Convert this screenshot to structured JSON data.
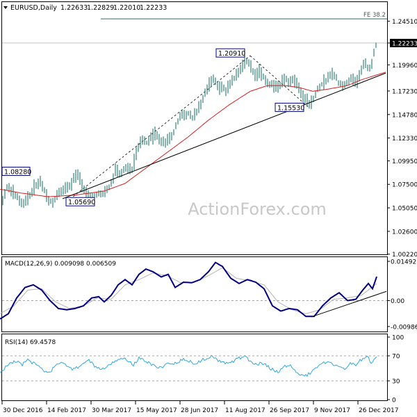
{
  "header": {
    "symbol": "EURUSD,Daily",
    "open": "1.22633",
    "high": "1.22829",
    "low": "1.22010",
    "close": "1.22233"
  },
  "watermark": "ActionForex.com",
  "colors": {
    "price_bar": "#0b6b5e",
    "moving_average": "#d61f1f",
    "trendline": "#000000",
    "macd_main": "#000080",
    "macd_signal": "#b4b4b4",
    "rsi": "#2aa9e0",
    "fibo_line": "#1f6f6f",
    "label_border": "#000080"
  },
  "chart_data": [
    {
      "type": "line",
      "panel": "price",
      "ylim": [
        1.002,
        1.265
      ],
      "y_ticks": [
        "1.24510",
        "1.22233",
        "1.19960",
        "1.17230",
        "1.14780",
        "1.12330",
        "1.09950",
        "1.07500",
        "1.05050",
        "1.02600",
        "1.00220"
      ],
      "current_price": "1.22233",
      "fibo_label": "FE 38.2",
      "fibo_level": 1.2475,
      "annotations": [
        {
          "label": "1.08280",
          "value": 1.0828
        },
        {
          "label": "1.05690",
          "value": 1.0569
        },
        {
          "label": "1.20910",
          "value": 1.2091
        },
        {
          "label": "1.15530",
          "value": 1.1553
        }
      ],
      "price_anchors": [
        [
          0,
          1.038
        ],
        [
          4,
          1.058
        ],
        [
          10,
          1.072
        ],
        [
          18,
          1.068
        ],
        [
          24,
          1.062
        ],
        [
          32,
          1.055
        ],
        [
          40,
          1.06
        ],
        [
          48,
          1.07
        ],
        [
          58,
          1.078
        ],
        [
          64,
          1.068
        ],
        [
          70,
          1.058
        ],
        [
          76,
          1.056
        ],
        [
          82,
          1.064
        ],
        [
          90,
          1.068
        ],
        [
          98,
          1.072
        ],
        [
          106,
          1.08
        ],
        [
          112,
          1.085
        ],
        [
          118,
          1.072
        ],
        [
          124,
          1.066
        ],
        [
          132,
          1.062
        ],
        [
          140,
          1.064
        ],
        [
          150,
          1.066
        ],
        [
          158,
          1.072
        ],
        [
          166,
          1.088
        ],
        [
          174,
          1.086
        ],
        [
          182,
          1.094
        ],
        [
          190,
          1.09
        ],
        [
          198,
          1.112
        ],
        [
          206,
          1.122
        ],
        [
          212,
          1.118
        ],
        [
          218,
          1.124
        ],
        [
          224,
          1.128
        ],
        [
          230,
          1.122
        ],
        [
          236,
          1.118
        ],
        [
          242,
          1.12
        ],
        [
          248,
          1.126
        ],
        [
          254,
          1.138
        ],
        [
          260,
          1.148
        ],
        [
          266,
          1.146
        ],
        [
          272,
          1.15
        ],
        [
          278,
          1.144
        ],
        [
          284,
          1.152
        ],
        [
          290,
          1.16
        ],
        [
          296,
          1.172
        ],
        [
          302,
          1.18
        ],
        [
          308,
          1.186
        ],
        [
          314,
          1.176
        ],
        [
          320,
          1.178
        ],
        [
          326,
          1.172
        ],
        [
          332,
          1.18
        ],
        [
          338,
          1.186
        ],
        [
          344,
          1.192
        ],
        [
          350,
          1.2
        ],
        [
          356,
          1.204
        ],
        [
          362,
          1.196
        ],
        [
          368,
          1.188
        ],
        [
          374,
          1.192
        ],
        [
          380,
          1.186
        ],
        [
          386,
          1.178
        ],
        [
          392,
          1.18
        ],
        [
          398,
          1.176
        ],
        [
          404,
          1.18
        ],
        [
          410,
          1.186
        ],
        [
          416,
          1.18
        ],
        [
          422,
          1.184
        ],
        [
          428,
          1.18
        ],
        [
          434,
          1.17
        ],
        [
          440,
          1.162
        ],
        [
          446,
          1.158
        ],
        [
          452,
          1.166
        ],
        [
          458,
          1.176
        ],
        [
          464,
          1.18
        ],
        [
          470,
          1.184
        ],
        [
          476,
          1.19
        ],
        [
          482,
          1.188
        ],
        [
          488,
          1.18
        ],
        [
          494,
          1.178
        ],
        [
          500,
          1.182
        ],
        [
          506,
          1.186
        ],
        [
          512,
          1.18
        ],
        [
          518,
          1.19
        ],
        [
          524,
          1.202
        ],
        [
          530,
          1.196
        ],
        [
          534,
          1.195
        ],
        [
          538,
          1.212
        ],
        [
          542,
          1.2223
        ]
      ],
      "ma_anchors": [
        [
          0,
          1.07
        ],
        [
          30,
          1.066
        ],
        [
          70,
          1.062
        ],
        [
          110,
          1.064
        ],
        [
          150,
          1.068
        ],
        [
          180,
          1.076
        ],
        [
          210,
          1.092
        ],
        [
          240,
          1.108
        ],
        [
          270,
          1.124
        ],
        [
          300,
          1.142
        ],
        [
          330,
          1.158
        ],
        [
          360,
          1.172
        ],
        [
          385,
          1.178
        ],
        [
          410,
          1.178
        ],
        [
          430,
          1.176
        ],
        [
          450,
          1.172
        ],
        [
          470,
          1.174
        ],
        [
          500,
          1.178
        ],
        [
          520,
          1.184
        ],
        [
          555,
          1.192
        ]
      ],
      "trendline": [
        [
          90,
          1.06
        ],
        [
          555,
          1.191
        ]
      ],
      "dashed_swings": [
        [
          96,
          1.0569
        ],
        [
          360,
          1.2091
        ],
        [
          444,
          1.1553
        ]
      ]
    },
    {
      "type": "line",
      "panel": "macd",
      "label": "MACD(12,26,9) 0.009098 0.006509",
      "ylim": [
        -0.0115,
        0.016
      ],
      "y_ticks": [
        "0.014926",
        "0.00",
        "-0.009867"
      ],
      "main_anchors": [
        [
          0,
          -0.007
        ],
        [
          12,
          -0.005
        ],
        [
          24,
          0.001
        ],
        [
          36,
          0.005
        ],
        [
          48,
          0.006
        ],
        [
          60,
          0.004
        ],
        [
          72,
          0.0
        ],
        [
          84,
          -0.003
        ],
        [
          96,
          -0.0035
        ],
        [
          108,
          -0.003
        ],
        [
          120,
          -0.002
        ],
        [
          132,
          0.001
        ],
        [
          142,
          0.0015
        ],
        [
          150,
          -0.0005
        ],
        [
          160,
          0.002
        ],
        [
          170,
          0.006
        ],
        [
          180,
          0.008
        ],
        [
          190,
          0.006
        ],
        [
          200,
          0.01
        ],
        [
          210,
          0.012
        ],
        [
          220,
          0.011
        ],
        [
          232,
          0.009
        ],
        [
          242,
          0.01
        ],
        [
          252,
          0.005
        ],
        [
          264,
          0.007
        ],
        [
          276,
          0.0068
        ],
        [
          288,
          0.008
        ],
        [
          300,
          0.011
        ],
        [
          310,
          0.0145
        ],
        [
          320,
          0.013
        ],
        [
          332,
          0.0085
        ],
        [
          344,
          0.0065
        ],
        [
          356,
          0.008
        ],
        [
          368,
          0.007
        ],
        [
          380,
          0.0045
        ],
        [
          392,
          -0.002
        ],
        [
          404,
          -0.004
        ],
        [
          416,
          -0.003
        ],
        [
          428,
          -0.0035
        ],
        [
          440,
          -0.006
        ],
        [
          452,
          -0.006
        ],
        [
          464,
          -0.002
        ],
        [
          476,
          0.001
        ],
        [
          488,
          0.003
        ],
        [
          500,
          0.0
        ],
        [
          512,
          0.0005
        ],
        [
          522,
          0.004
        ],
        [
          530,
          0.0065
        ],
        [
          536,
          0.0045
        ],
        [
          542,
          0.0091
        ]
      ],
      "signal_anchors": [
        [
          0,
          -0.005
        ],
        [
          20,
          -0.002
        ],
        [
          40,
          0.004
        ],
        [
          60,
          0.0045
        ],
        [
          80,
          -0.0005
        ],
        [
          100,
          -0.003
        ],
        [
          120,
          -0.002
        ],
        [
          140,
          0.001
        ],
        [
          160,
          0.0005
        ],
        [
          180,
          0.006
        ],
        [
          200,
          0.008
        ],
        [
          220,
          0.0105
        ],
        [
          240,
          0.0095
        ],
        [
          260,
          0.0068
        ],
        [
          280,
          0.007
        ],
        [
          300,
          0.0095
        ],
        [
          320,
          0.0125
        ],
        [
          340,
          0.0085
        ],
        [
          360,
          0.0075
        ],
        [
          380,
          0.006
        ],
        [
          400,
          -0.0005
        ],
        [
          420,
          -0.0035
        ],
        [
          440,
          -0.005
        ],
        [
          460,
          -0.0035
        ],
        [
          480,
          0.0005
        ],
        [
          500,
          0.001
        ],
        [
          520,
          0.002
        ],
        [
          542,
          0.0065
        ]
      ],
      "trendline": [
        [
          448,
          -0.0062
        ],
        [
          556,
          0.0035
        ]
      ]
    },
    {
      "type": "line",
      "panel": "rsi",
      "label": "RSI(14) 69.4578",
      "ylim": [
        0,
        100
      ],
      "y_ticks": [
        "100",
        "70",
        "30",
        "0"
      ],
      "levels": [
        70,
        30
      ],
      "rsi_anchors": [
        [
          0,
          44
        ],
        [
          8,
          52
        ],
        [
          16,
          58
        ],
        [
          24,
          62
        ],
        [
          32,
          56
        ],
        [
          40,
          64
        ],
        [
          48,
          58
        ],
        [
          56,
          52
        ],
        [
          64,
          46
        ],
        [
          72,
          44
        ],
        [
          80,
          56
        ],
        [
          88,
          60
        ],
        [
          96,
          54
        ],
        [
          104,
          48
        ],
        [
          112,
          52
        ],
        [
          120,
          58
        ],
        [
          128,
          62
        ],
        [
          136,
          54
        ],
        [
          144,
          48
        ],
        [
          152,
          52
        ],
        [
          160,
          58
        ],
        [
          168,
          64
        ],
        [
          176,
          66
        ],
        [
          184,
          62
        ],
        [
          192,
          56
        ],
        [
          200,
          66
        ],
        [
          208,
          62
        ],
        [
          216,
          58
        ],
        [
          224,
          54
        ],
        [
          232,
          50
        ],
        [
          240,
          56
        ],
        [
          248,
          58
        ],
        [
          256,
          60
        ],
        [
          264,
          66
        ],
        [
          272,
          62
        ],
        [
          280,
          56
        ],
        [
          288,
          62
        ],
        [
          296,
          66
        ],
        [
          304,
          70
        ],
        [
          312,
          64
        ],
        [
          320,
          60
        ],
        [
          328,
          58
        ],
        [
          336,
          62
        ],
        [
          344,
          66
        ],
        [
          352,
          68
        ],
        [
          360,
          62
        ],
        [
          368,
          56
        ],
        [
          376,
          58
        ],
        [
          384,
          54
        ],
        [
          392,
          48
        ],
        [
          400,
          44
        ],
        [
          408,
          52
        ],
        [
          416,
          56
        ],
        [
          424,
          46
        ],
        [
          432,
          40
        ],
        [
          440,
          38
        ],
        [
          448,
          44
        ],
        [
          456,
          52
        ],
        [
          464,
          58
        ],
        [
          472,
          60
        ],
        [
          480,
          56
        ],
        [
          488,
          54
        ],
        [
          496,
          50
        ],
        [
          504,
          58
        ],
        [
          512,
          56
        ],
        [
          520,
          64
        ],
        [
          528,
          70
        ],
        [
          534,
          58
        ],
        [
          538,
          66
        ],
        [
          542,
          69.5
        ]
      ]
    }
  ],
  "x_axis": {
    "labels": [
      "30 Dec 2016",
      "14 Feb 2017",
      "30 Mar 2017",
      "15 May 2017",
      "28 Jun 2017",
      "11 Aug 2017",
      "26 Sep 2017",
      "9 Nov 2017",
      "26 Dec 2017"
    ]
  }
}
